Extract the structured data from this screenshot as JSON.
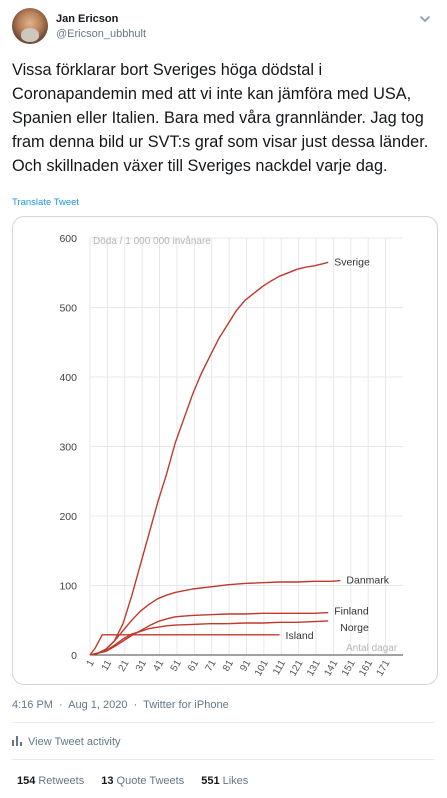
{
  "tweet": {
    "author_name": "Jan Ericson",
    "author_handle": "@Ericson_ubbhult",
    "text": "Vissa förklarar bort Sveriges höga dödstal i Coronapandemin med att vi inte kan jämföra med USA, Spanien eller Italien. Bara med våra grannländer. Jag tog fram denna bild ur SVT:s graf som visar just dessa länder. Och skillnaden växer till Sveriges nackdel varje dag.",
    "translate_label": "Translate Tweet",
    "time": "4:16 PM",
    "separator": "·",
    "date": "Aug 1, 2020",
    "source": "Twitter for iPhone",
    "activity_label": "View Tweet activity",
    "retweets_count": "154",
    "retweets_label": "Retweets",
    "quote_count": "13",
    "quote_label": "Quote Tweets",
    "likes_count": "551",
    "likes_label": "Likes"
  },
  "icons": {
    "menu": "chevron-down-icon",
    "activity": "bar-chart-icon"
  },
  "colors": {
    "line": "#c0392b",
    "link": "#1b95e0",
    "muted": "#657786",
    "grid": "#e8e8e8"
  },
  "chart_data": {
    "type": "line",
    "ylabel": "Döda / 1 000 000 invånare",
    "xlabel": "Antal dagar",
    "ylim": [
      0,
      600
    ],
    "xlim": [
      1,
      181
    ],
    "yticks": [
      0,
      100,
      200,
      300,
      400,
      500,
      600
    ],
    "xticks": [
      1,
      11,
      21,
      31,
      41,
      51,
      61,
      71,
      81,
      91,
      101,
      111,
      121,
      131,
      141,
      151,
      161,
      171
    ],
    "grid": true,
    "series": [
      {
        "name": "Sverige",
        "x": [
          1,
          5,
          10,
          15,
          20,
          25,
          30,
          35,
          40,
          45,
          50,
          55,
          60,
          65,
          70,
          75,
          80,
          85,
          90,
          95,
          100,
          105,
          110,
          115,
          120,
          125,
          130,
          135,
          138
        ],
        "y": [
          0,
          2,
          8,
          20,
          45,
          85,
          130,
          175,
          220,
          260,
          305,
          340,
          375,
          405,
          430,
          455,
          475,
          495,
          510,
          520,
          530,
          538,
          545,
          550,
          555,
          558,
          560,
          563,
          565
        ]
      },
      {
        "name": "Danmark",
        "x": [
          1,
          5,
          10,
          15,
          20,
          25,
          30,
          35,
          40,
          45,
          50,
          60,
          70,
          80,
          90,
          100,
          110,
          120,
          130,
          140,
          145
        ],
        "y": [
          0,
          2,
          8,
          20,
          35,
          50,
          63,
          73,
          81,
          86,
          90,
          95,
          98,
          101,
          103,
          104,
          105,
          105,
          106,
          106,
          107
        ]
      },
      {
        "name": "Finland",
        "x": [
          1,
          10,
          15,
          20,
          25,
          30,
          35,
          40,
          45,
          50,
          55,
          60,
          70,
          80,
          90,
          100,
          110,
          120,
          130,
          138
        ],
        "y": [
          0,
          5,
          12,
          20,
          28,
          35,
          42,
          48,
          52,
          55,
          56,
          57,
          58,
          59,
          59,
          60,
          60,
          60,
          60,
          61
        ]
      },
      {
        "name": "Norge",
        "x": [
          1,
          10,
          15,
          20,
          25,
          30,
          35,
          40,
          45,
          50,
          60,
          70,
          80,
          90,
          100,
          110,
          120,
          130,
          138
        ],
        "y": [
          0,
          6,
          14,
          23,
          30,
          34,
          38,
          40,
          42,
          43,
          44,
          45,
          45,
          46,
          46,
          47,
          47,
          48,
          49
        ]
      },
      {
        "name": "Island",
        "x": [
          1,
          4,
          8,
          110
        ],
        "y": [
          0,
          10,
          29,
          29
        ]
      }
    ]
  }
}
